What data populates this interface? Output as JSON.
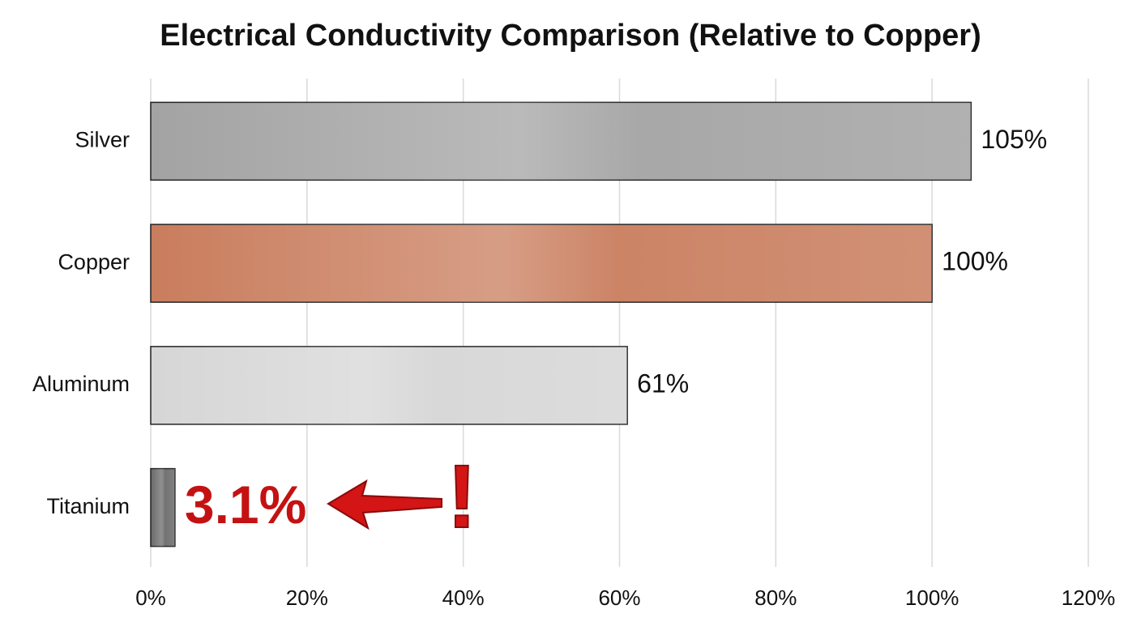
{
  "chart_data": {
    "type": "bar",
    "orientation": "horizontal",
    "title": "Electrical Conductivity Comparison (Relative to Copper)",
    "categories": [
      "Silver",
      "Copper",
      "Aluminum",
      "Titanium"
    ],
    "values": [
      105,
      100,
      61,
      3.1
    ],
    "value_labels": [
      "105%",
      "100%",
      "61%",
      "3.1%"
    ],
    "colors": [
      "#a3a3a3",
      "#c97d5d",
      "#d6d6d6",
      "#6b6b6b"
    ],
    "value_label_colors": [
      "#111111",
      "#111111",
      "#111111",
      "#c41212"
    ],
    "xlim": [
      0,
      120
    ],
    "xticks": [
      {
        "value": 0,
        "label": "0%"
      },
      {
        "value": 20,
        "label": "20%"
      },
      {
        "value": 40,
        "label": "40%"
      },
      {
        "value": 60,
        "label": "60%"
      },
      {
        "value": 80,
        "label": "80%"
      },
      {
        "value": 100,
        "label": "100%"
      },
      {
        "value": 120,
        "label": "120%"
      }
    ],
    "grid": true,
    "annotation": "!"
  }
}
